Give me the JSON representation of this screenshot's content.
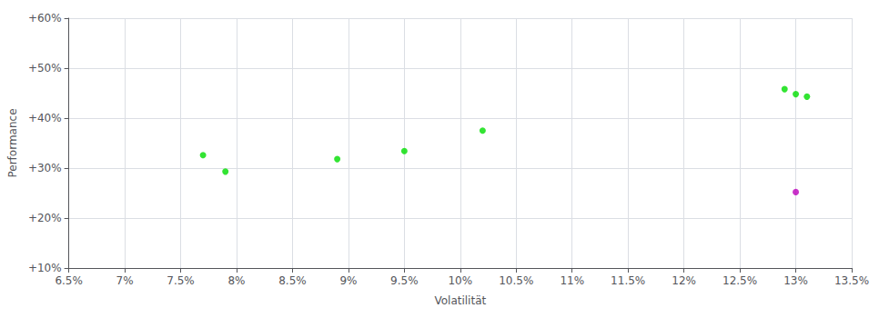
{
  "chart_data": {
    "type": "scatter",
    "xlabel": "Volatilität",
    "ylabel": "Performance",
    "xlim": [
      0.065,
      0.135
    ],
    "ylim": [
      0.1,
      0.6
    ],
    "xticks": [
      {
        "value": 0.065,
        "label": "6.5%"
      },
      {
        "value": 0.07,
        "label": "7%"
      },
      {
        "value": 0.075,
        "label": "7.5%"
      },
      {
        "value": 0.08,
        "label": "8%"
      },
      {
        "value": 0.085,
        "label": "8.5%"
      },
      {
        "value": 0.09,
        "label": "9%"
      },
      {
        "value": 0.095,
        "label": "9.5%"
      },
      {
        "value": 0.1,
        "label": "10%"
      },
      {
        "value": 0.105,
        "label": "10.5%"
      },
      {
        "value": 0.11,
        "label": "11%"
      },
      {
        "value": 0.115,
        "label": "11.5%"
      },
      {
        "value": 0.12,
        "label": "12%"
      },
      {
        "value": 0.125,
        "label": "12.5%"
      },
      {
        "value": 0.13,
        "label": "13%"
      },
      {
        "value": 0.135,
        "label": "13.5%"
      }
    ],
    "yticks": [
      {
        "value": 0.1,
        "label": "+10%"
      },
      {
        "value": 0.2,
        "label": "+20%"
      },
      {
        "value": 0.3,
        "label": "+30%"
      },
      {
        "value": 0.4,
        "label": "+40%"
      },
      {
        "value": 0.5,
        "label": "+50%"
      },
      {
        "value": 0.6,
        "label": "+60%"
      }
    ],
    "grid": true,
    "series": [
      {
        "color": "#00dd00",
        "x": [
          0.077,
          0.079,
          0.089,
          0.095,
          0.102,
          0.129,
          0.13,
          0.131
        ],
        "values": [
          0.326,
          0.293,
          0.318,
          0.334,
          0.375,
          0.458,
          0.448,
          0.443
        ]
      },
      {
        "color": "#bb00bb",
        "x": [
          0.13
        ],
        "values": [
          0.252
        ]
      }
    ]
  }
}
